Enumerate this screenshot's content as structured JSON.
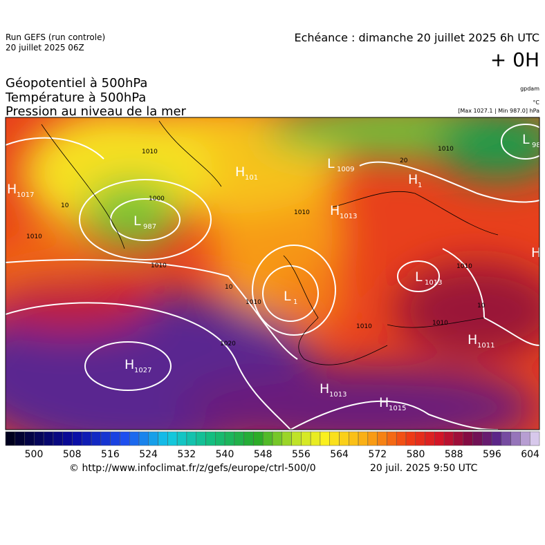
{
  "header": {
    "run": "Run GEFS (run controle)",
    "run_date": "20 juillet 2025 06Z",
    "echeance": "Echéance : dimanche 20 juillet 2025 6h UTC",
    "offset": "+ 0H",
    "fields": [
      "Géopotentiel à 500hPa",
      "Température à 500hPa",
      "Pression au niveau de la mer"
    ],
    "units": [
      "gpdam",
      "°C",
      "[Max 1027.1 | Min 987.0] hPa"
    ]
  },
  "map": {
    "centers": [
      {
        "letter": "H",
        "value": "1017"
      },
      {
        "letter": "L",
        "value": "987"
      },
      {
        "letter": "H",
        "value": "101"
      },
      {
        "letter": "L",
        "value": "1009"
      },
      {
        "letter": "H",
        "value": "1"
      },
      {
        "letter": "L",
        "value": "98"
      },
      {
        "letter": "H",
        "value": "1013"
      },
      {
        "letter": "L",
        "value": "1013"
      },
      {
        "letter": "L",
        "value": "1"
      },
      {
        "letter": "H",
        "value": "1011"
      },
      {
        "letter": "H",
        "value": "1027"
      },
      {
        "letter": "H",
        "value": "1013"
      },
      {
        "letter": "H",
        "value": "1015"
      },
      {
        "letter": "H",
        "value": ""
      }
    ],
    "isobar_labels": [
      "1010",
      "1000",
      "1010",
      "1010",
      "1010",
      "1020",
      "1010",
      "1010",
      "1010",
      "1010",
      "1010"
    ],
    "isotherm_labels": [
      "20",
      "10",
      "10",
      "10"
    ]
  },
  "colorbar": {
    "labels": [
      500,
      508,
      516,
      524,
      532,
      540,
      548,
      556,
      564,
      572,
      580,
      588,
      596,
      604
    ]
  },
  "footer": {
    "url": "© http://www.infoclimat.fr/z/gefs/europe/ctrl-500/0",
    "generated": "20 juil. 2025  9:50 UTC"
  }
}
